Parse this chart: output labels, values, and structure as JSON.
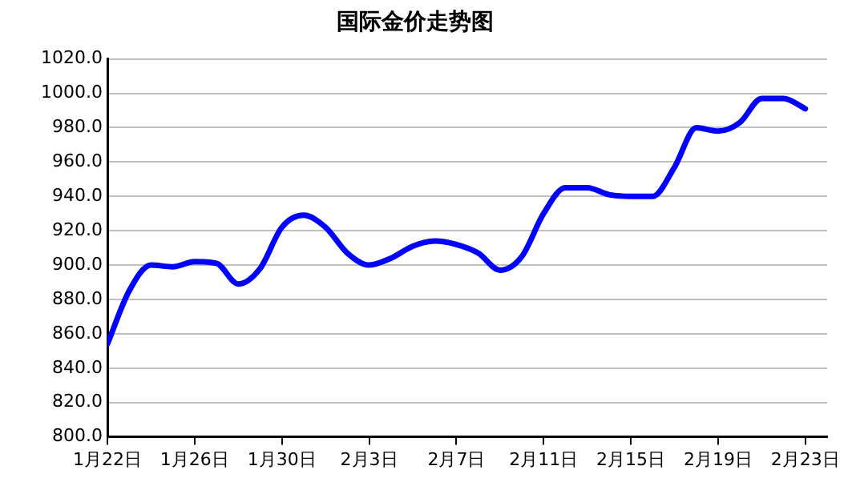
{
  "chart_data": {
    "type": "line",
    "title": "国际金价走势图",
    "x": [
      "--01-22",
      "--01-23",
      "--01-24",
      "--01-25",
      "--01-26",
      "--01-27",
      "--01-28",
      "--01-29",
      "--01-30",
      "--01-31",
      "--02-01",
      "--02-02",
      "--02-03",
      "--02-04",
      "--02-05",
      "--02-06",
      "--02-07",
      "--02-08",
      "--02-09",
      "--02-10",
      "--02-11",
      "--02-12",
      "--02-13",
      "--02-14",
      "--02-15",
      "--02-16",
      "--02-17",
      "--02-18",
      "--02-19",
      "--02-20",
      "--02-21",
      "--02-22",
      "--02-23"
    ],
    "series": [
      {
        "color": "#0000ff",
        "values": [
          854,
          885,
          900,
          899,
          902,
          901,
          889,
          898,
          922,
          929,
          922,
          907,
          900,
          904,
          911,
          914,
          912,
          907,
          897,
          905,
          930,
          945,
          945,
          941,
          940,
          940,
          957,
          980,
          978,
          983,
          997,
          997,
          991
        ]
      }
    ],
    "xlim": [
      "--01-22",
      "--02-24"
    ],
    "xticks": [
      {
        "value": "--01-22",
        "label": "1月22日"
      },
      {
        "value": "--01-26",
        "label": "1月26日"
      },
      {
        "value": "--01-30",
        "label": "1月30日"
      },
      {
        "value": "--02-03",
        "label": "2月3日"
      },
      {
        "value": "--02-07",
        "label": "2月7日"
      },
      {
        "value": "--02-11",
        "label": "2月11日"
      },
      {
        "value": "--02-15",
        "label": "2月15日"
      },
      {
        "value": "--02-19",
        "label": "2月19日"
      },
      {
        "value": "--02-23",
        "label": "2月23日"
      }
    ],
    "ylim": [
      800,
      1020
    ],
    "yticks": [
      {
        "value": 800,
        "label": "800.0"
      },
      {
        "value": 820,
        "label": "820.0"
      },
      {
        "value": 840,
        "label": "840.0"
      },
      {
        "value": 860,
        "label": "860.0"
      },
      {
        "value": 880,
        "label": "880.0"
      },
      {
        "value": 900,
        "label": "900.0"
      },
      {
        "value": 920,
        "label": "920.0"
      },
      {
        "value": 940,
        "label": "940.0"
      },
      {
        "value": 960,
        "label": "960.0"
      },
      {
        "value": 980,
        "label": "980.0"
      },
      {
        "value": 1000,
        "label": "1000.0"
      },
      {
        "value": 1020,
        "label": "1020.0"
      }
    ],
    "grid": "y",
    "line_style": "solid",
    "marker": "none",
    "legend": false
  }
}
